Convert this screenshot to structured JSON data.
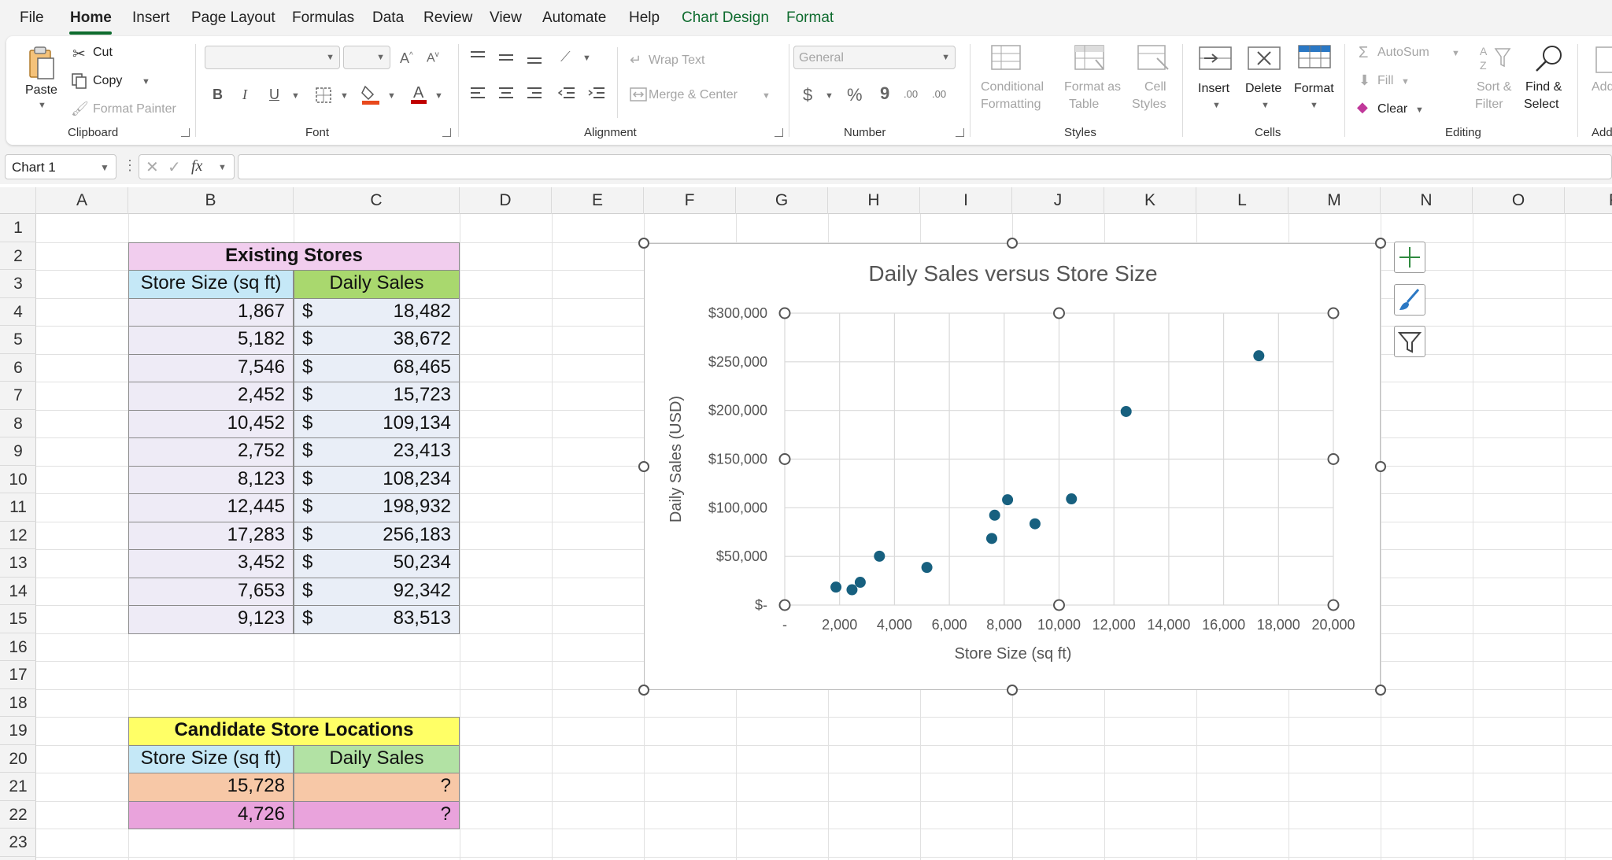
{
  "menu": {
    "items": [
      "File",
      "Home",
      "Insert",
      "Page Layout",
      "Formulas",
      "Data",
      "Review",
      "View",
      "Automate",
      "Help",
      "Chart Design",
      "Format"
    ],
    "active": "Home"
  },
  "ribbon": {
    "clipboard": {
      "paste": "Paste",
      "cut": "Cut",
      "copy": "Copy",
      "format_painter": "Format Painter",
      "label": "Clipboard"
    },
    "font": {
      "label": "Font",
      "bold": "B",
      "italic": "I",
      "underline": "U",
      "fill_color": "#e8481c",
      "font_color": "#c00000"
    },
    "alignment": {
      "wrap_text": "Wrap Text",
      "merge_center": "Merge & Center",
      "label": "Alignment"
    },
    "number": {
      "format": "General",
      "currency": "$",
      "percent": "%",
      "comma": "9",
      "inc_dec": ".00",
      "dec_dec": ".00",
      "label": "Number"
    },
    "styles": {
      "conditional_1": "Conditional",
      "conditional_2": "Formatting",
      "format_table_1": "Format as",
      "format_table_2": "Table",
      "cell_styles_1": "Cell",
      "cell_styles_2": "Styles",
      "label": "Styles"
    },
    "cells": {
      "insert": "Insert",
      "delete": "Delete",
      "format": "Format",
      "label": "Cells"
    },
    "editing": {
      "autosum": "AutoSum",
      "fill": "Fill",
      "clear": "Clear",
      "sort_1": "Sort &",
      "sort_2": "Filter",
      "find_1": "Find &",
      "find_2": "Select",
      "label": "Editing"
    },
    "add": {
      "text": "Add",
      "label": "Add"
    }
  },
  "formula_bar": {
    "name_box": "Chart 1",
    "fx": "fx",
    "value": ""
  },
  "columns": [
    "A",
    "B",
    "C",
    "D",
    "E",
    "F",
    "G",
    "H",
    "I",
    "J",
    "K",
    "L",
    "M",
    "N",
    "O",
    "P"
  ],
  "rows": [
    "1",
    "2",
    "3",
    "4",
    "5",
    "6",
    "7",
    "8",
    "9",
    "10",
    "11",
    "12",
    "13",
    "14",
    "15",
    "16",
    "17",
    "18",
    "19",
    "20",
    "21",
    "22",
    "23"
  ],
  "existing": {
    "title": "Existing Stores",
    "header_size": "Store Size (sq ft)",
    "header_sales": "Daily Sales",
    "currency": "$",
    "rows": [
      {
        "size": "1,867",
        "sales": "18,482"
      },
      {
        "size": "5,182",
        "sales": "38,672"
      },
      {
        "size": "7,546",
        "sales": "68,465"
      },
      {
        "size": "2,452",
        "sales": "15,723"
      },
      {
        "size": "10,452",
        "sales": "109,134"
      },
      {
        "size": "2,752",
        "sales": "23,413"
      },
      {
        "size": "8,123",
        "sales": "108,234"
      },
      {
        "size": "12,445",
        "sales": "198,932"
      },
      {
        "size": "17,283",
        "sales": "256,183"
      },
      {
        "size": "3,452",
        "sales": "50,234"
      },
      {
        "size": "7,653",
        "sales": "92,342"
      },
      {
        "size": "9,123",
        "sales": "83,513"
      }
    ]
  },
  "candidates": {
    "title": "Candidate Store Locations",
    "header_size": "Store Size (sq ft)",
    "header_sales": "Daily Sales",
    "rows": [
      {
        "size": "15,728",
        "sales": "?"
      },
      {
        "size": "4,726",
        "sales": "?"
      }
    ]
  },
  "colors": {
    "title_pink": "#f1cdee",
    "header_blue": "#c5e8f7",
    "header_green": "#a9d86e",
    "data_left": "#eeebf6",
    "data_right": "#e9eef7",
    "cand_title": "#ffff66",
    "cand_sales_header": "#b2e2a4",
    "cand_row1": "#f7c8a7",
    "cand_row2": "#e9a3dc",
    "marker": "#17607f"
  },
  "chart_data": {
    "type": "scatter",
    "title": "Daily Sales versus Store Size",
    "xlabel": "Store Size (sq ft)",
    "ylabel": "Daily Sales (USD)",
    "xlim": [
      0,
      20000
    ],
    "ylim": [
      0,
      300000
    ],
    "xticks": [
      "-",
      "2,000",
      "4,000",
      "6,000",
      "8,000",
      "10,000",
      "12,000",
      "14,000",
      "16,000",
      "18,000",
      "20,000"
    ],
    "yticks": [
      "$-",
      "$50,000",
      "$100,000",
      "$150,000",
      "$200,000",
      "$250,000",
      "$300,000"
    ],
    "grid": true,
    "points": [
      [
        1867,
        18482
      ],
      [
        5182,
        38672
      ],
      [
        7546,
        68465
      ],
      [
        2452,
        15723
      ],
      [
        10452,
        109134
      ],
      [
        2752,
        23413
      ],
      [
        8123,
        108234
      ],
      [
        12445,
        198932
      ],
      [
        17283,
        256183
      ],
      [
        3452,
        50234
      ],
      [
        7653,
        92342
      ],
      [
        9123,
        83513
      ]
    ]
  }
}
